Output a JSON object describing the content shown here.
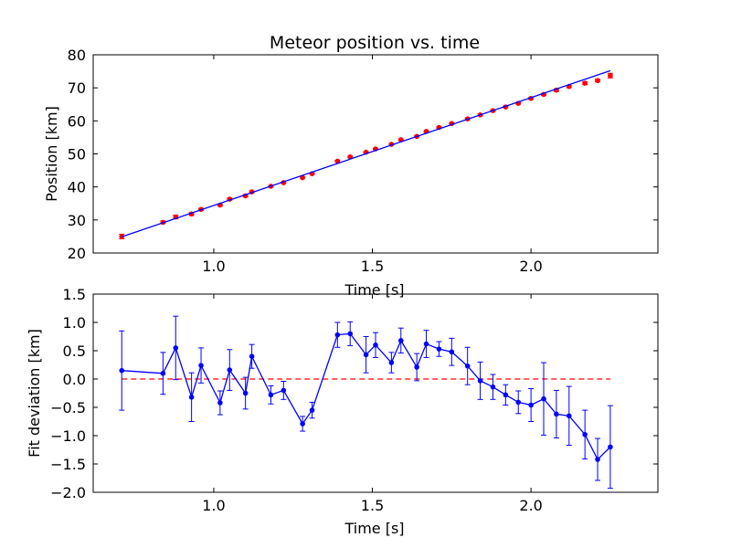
{
  "chart_data": [
    {
      "type": "scatter",
      "title": "Meteor position vs. time",
      "xlabel": "Time [s]",
      "ylabel": "Position [km]",
      "xlim": [
        0.62,
        2.4
      ],
      "ylim": [
        20,
        80
      ],
      "xticks": [
        1.0,
        1.5,
        2.0
      ],
      "xtick_labels": [
        "1.0",
        "1.5",
        "2.0"
      ],
      "yticks": [
        20,
        30,
        40,
        50,
        60,
        70,
        80
      ],
      "ytick_labels": [
        "20",
        "30",
        "40",
        "50",
        "60",
        "70",
        "80"
      ],
      "grid": false,
      "series": [
        {
          "style": "errorbar-markers",
          "color": "#ff0000",
          "x": [
            0.71,
            0.84,
            0.88,
            0.93,
            0.96,
            1.02,
            1.05,
            1.1,
            1.12,
            1.18,
            1.22,
            1.28,
            1.31,
            1.39,
            1.43,
            1.48,
            1.51,
            1.56,
            1.59,
            1.64,
            1.67,
            1.71,
            1.75,
            1.8,
            1.84,
            1.88,
            1.92,
            1.96,
            2.0,
            2.04,
            2.08,
            2.12,
            2.17,
            2.21,
            2.25
          ],
          "y": [
            25.0,
            29.3,
            30.9,
            31.8,
            33.2,
            34.5,
            36.3,
            37.3,
            38.5,
            40.2,
            41.3,
            42.8,
            44.0,
            47.8,
            49.1,
            50.5,
            51.5,
            52.9,
            54.3,
            55.3,
            56.8,
            58.0,
            59.2,
            60.6,
            61.8,
            63.1,
            64.2,
            65.3,
            66.8,
            68.0,
            69.3,
            70.4,
            71.4,
            72.2,
            73.7
          ],
          "yerr": [
            0.7,
            0.4,
            0.55,
            0.45,
            0.3,
            0.25,
            0.35,
            0.35,
            0.25,
            0.2,
            0.2,
            0.15,
            0.15,
            0.2,
            0.2,
            0.2,
            0.2,
            0.2,
            0.2,
            0.2,
            0.2,
            0.2,
            0.2,
            0.3,
            0.3,
            0.15,
            0.2,
            0.25,
            0.3,
            0.3,
            0.4,
            0.3,
            0.4,
            0.4,
            0.7
          ]
        },
        {
          "style": "line",
          "color": "#0000ff",
          "x": [
            0.71,
            2.25
          ],
          "y": [
            24.9,
            75.2
          ]
        }
      ]
    },
    {
      "type": "line",
      "title": "",
      "xlabel": "Time [s]",
      "ylabel": "Fit deviation [km]",
      "xlim": [
        0.62,
        2.4
      ],
      "ylim": [
        -2.0,
        1.5
      ],
      "xticks": [
        1.0,
        1.5,
        2.0
      ],
      "xtick_labels": [
        "1.0",
        "1.5",
        "2.0"
      ],
      "yticks": [
        1.5,
        1.0,
        0.5,
        0.0,
        -0.5,
        -1.0,
        -1.5,
        -2.0
      ],
      "ytick_labels": [
        "1.5",
        "1.0",
        "0.5",
        "0.0",
        "−0.5",
        "−1.0",
        "−1.5",
        "−2.0"
      ],
      "grid": false,
      "reference_line": {
        "y": 0.0,
        "x": [
          0.71,
          2.25
        ],
        "color": "#ff0000",
        "style": "dashed"
      },
      "series": [
        {
          "style": "errorbar-line",
          "color": "#0000ff",
          "x": [
            0.71,
            0.84,
            0.88,
            0.93,
            0.96,
            1.02,
            1.05,
            1.1,
            1.12,
            1.18,
            1.22,
            1.28,
            1.31,
            1.39,
            1.43,
            1.48,
            1.51,
            1.56,
            1.59,
            1.64,
            1.67,
            1.71,
            1.75,
            1.8,
            1.84,
            1.88,
            1.92,
            1.96,
            2.0,
            2.04,
            2.08,
            2.12,
            2.17,
            2.21,
            2.25
          ],
          "y": [
            0.15,
            0.1,
            0.55,
            -0.32,
            0.24,
            -0.42,
            0.16,
            -0.25,
            0.4,
            -0.28,
            -0.2,
            -0.79,
            -0.55,
            0.78,
            0.8,
            0.43,
            0.6,
            0.29,
            0.68,
            0.21,
            0.62,
            0.53,
            0.48,
            0.23,
            -0.03,
            -0.14,
            -0.28,
            -0.41,
            -0.46,
            -0.35,
            -0.62,
            -0.65,
            -0.98,
            -1.42,
            -1.2
          ],
          "yerr": [
            0.7,
            0.37,
            0.56,
            0.43,
            0.31,
            0.21,
            0.36,
            0.28,
            0.21,
            0.16,
            0.16,
            0.13,
            0.14,
            0.22,
            0.21,
            0.32,
            0.22,
            0.18,
            0.22,
            0.24,
            0.24,
            0.13,
            0.24,
            0.33,
            0.33,
            0.22,
            0.18,
            0.2,
            0.29,
            0.64,
            0.42,
            0.52,
            0.43,
            0.37,
            0.73
          ]
        }
      ]
    }
  ]
}
